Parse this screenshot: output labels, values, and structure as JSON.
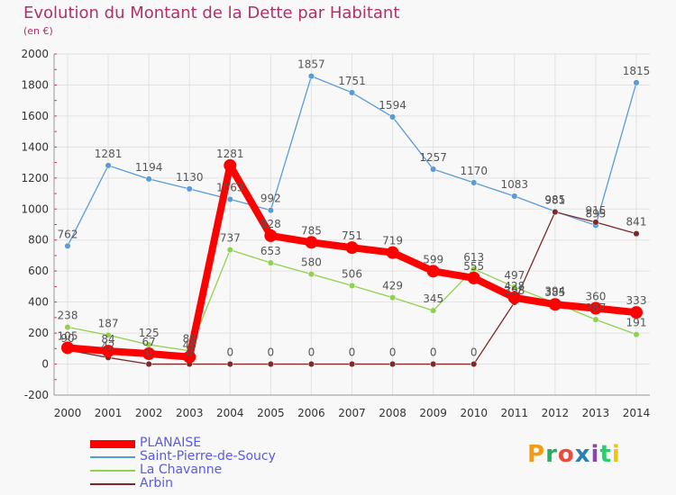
{
  "header": {
    "title": "Evolution du Montant de la Dette par Habitant",
    "subtitle": "(en €)"
  },
  "logo": {
    "text": "Proxiti",
    "colors": [
      "#f39c12",
      "#27ae60",
      "#e74c3c",
      "#2980b9",
      "#8e44ad",
      "#2ecc71",
      "#f1c40f"
    ]
  },
  "chart_data": {
    "type": "line",
    "title": "Evolution du Montant de la Dette par Habitant",
    "subtitle": "(en €)",
    "xlabel": "",
    "ylabel": "",
    "x": [
      "2000",
      "2001",
      "2002",
      "2003",
      "2004",
      "2005",
      "2006",
      "2007",
      "2008",
      "2009",
      "2010",
      "2011",
      "2012",
      "2013",
      "2014"
    ],
    "ylim": [
      -200,
      2000
    ],
    "yticks": [
      -200,
      0,
      200,
      400,
      600,
      800,
      1000,
      1200,
      1400,
      1600,
      1800,
      2000
    ],
    "grid": true,
    "legend_position": "bottom-left",
    "series": [
      {
        "name": "PLANAISE",
        "color": "#ff0000",
        "values": [
          105,
          84,
          67,
          46,
          1281,
          828,
          785,
          751,
          719,
          599,
          555,
          428,
          385,
          360,
          333
        ],
        "labels": [
          "105",
          "84",
          "67",
          "46",
          "1281",
          "828",
          "785",
          "751",
          "719",
          "599",
          "555",
          "428",
          "385",
          "360",
          "333"
        ]
      },
      {
        "name": "Saint-Pierre-de-Soucy",
        "color": "#5b9bd5",
        "values": [
          762,
          1281,
          1194,
          1130,
          1063,
          992,
          1857,
          1751,
          1594,
          1257,
          1170,
          1083,
          985,
          895,
          1815
        ],
        "labels": [
          "762",
          "1281",
          "1194",
          "1130",
          "1063",
          "992",
          "1857",
          "1751",
          "1594",
          "1257",
          "1170",
          "1083",
          "985",
          "895",
          "1815"
        ]
      },
      {
        "name": "La Chavanne",
        "color": "#92d050",
        "values": [
          238,
          187,
          125,
          86,
          737,
          653,
          580,
          506,
          429,
          345,
          613,
          497,
          394,
          287,
          191
        ],
        "labels": [
          "238",
          "187",
          "125",
          "86",
          "737",
          "653",
          "580",
          "506",
          "429",
          "345",
          "613",
          "497",
          "394",
          "287",
          "191"
        ]
      },
      {
        "name": "Arbin",
        "color": "#7b2929",
        "values": [
          90,
          42,
          0,
          0,
          0,
          0,
          0,
          0,
          0,
          0,
          0,
          398,
          981,
          915,
          841
        ],
        "labels": [
          "90",
          "42",
          "0",
          "0",
          "0",
          "0",
          "0",
          "0",
          "0",
          "0",
          "0",
          "398",
          "981",
          "915",
          "841"
        ]
      }
    ]
  }
}
